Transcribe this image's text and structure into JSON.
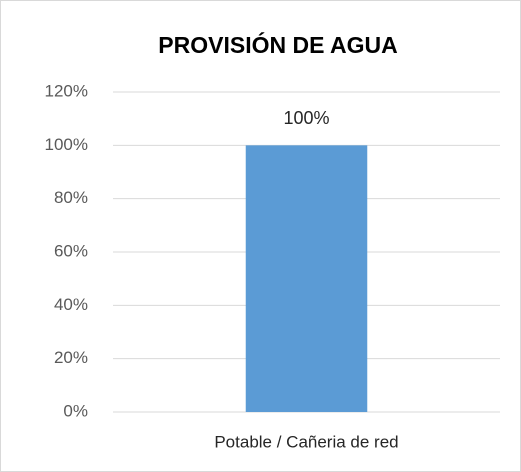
{
  "chart_data": {
    "type": "bar",
    "title": "PROVISIÓN DE AGUA",
    "categories": [
      "Potable / Cañeria de red"
    ],
    "values": [
      100
    ],
    "value_labels": [
      "100%"
    ],
    "color": "#5b9bd5",
    "ylim": [
      0,
      120
    ],
    "yticks": [
      {
        "value": 0,
        "label": "0%"
      },
      {
        "value": 20,
        "label": "20%"
      },
      {
        "value": 40,
        "label": "40%"
      },
      {
        "value": 60,
        "label": "60%"
      },
      {
        "value": 80,
        "label": "80%"
      },
      {
        "value": 100,
        "label": "100%"
      },
      {
        "value": 120,
        "label": "120%"
      }
    ],
    "grid": true
  }
}
